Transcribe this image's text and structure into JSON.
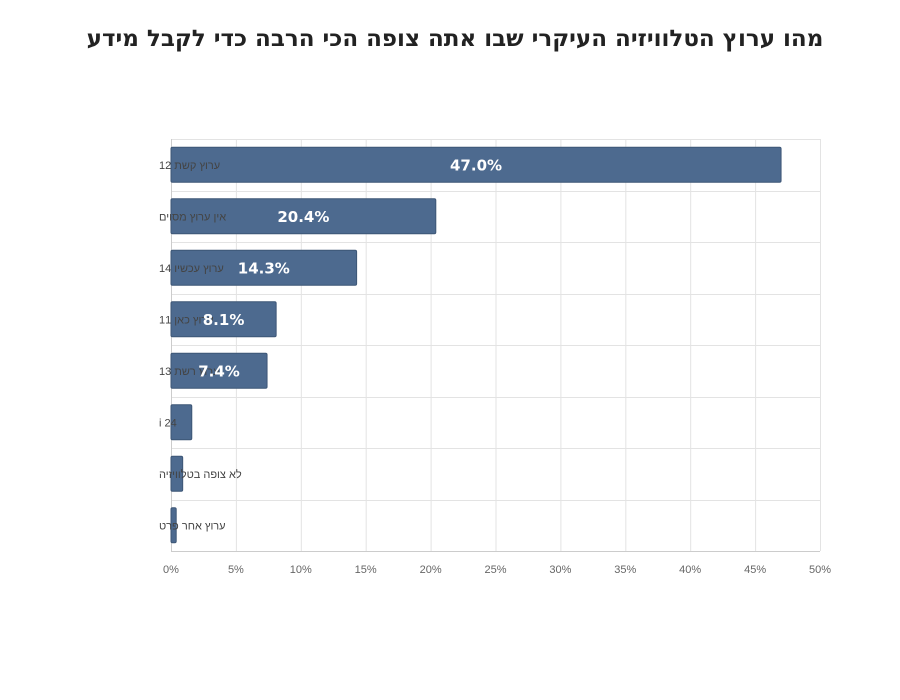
{
  "chart_data": {
    "type": "bar",
    "orientation": "horizontal",
    "title": "מהו ערוץ הטלוויזיה העיקרי שבו אתה צופה הכי הרבה כדי לקבל מידע",
    "categories": [
      "ערוץ קשת 12",
      "אין ערוץ מסוים",
      "ערוץ עכשיו 14",
      "ערוץ כאן 11",
      "ערוץ רשת 13",
      "i 24",
      "לא צופה בטלוויזיה",
      "ערוץ אחר פרט"
    ],
    "values": [
      47.0,
      20.4,
      14.3,
      8.1,
      7.4,
      1.6,
      0.9,
      0.4
    ],
    "data_labels": [
      "47.0%",
      "20.4%",
      "14.3%",
      "8.1%",
      "7.4%",
      "",
      "",
      ""
    ],
    "xlim": [
      0,
      50
    ],
    "x_ticks": [
      0,
      5,
      10,
      15,
      20,
      25,
      30,
      35,
      40,
      45,
      50
    ],
    "x_tick_labels": [
      "0%",
      "5%",
      "10%",
      "15%",
      "20%",
      "25%",
      "30%",
      "35%",
      "40%",
      "45%",
      "50%"
    ],
    "xlabel": "",
    "ylabel": "",
    "grid": true,
    "legend": "none",
    "colors": {
      "bar": "#4d6a8f",
      "bar_edge": "#3d5676",
      "grid": "#e3e3e3",
      "axis": "#cccccc"
    }
  }
}
